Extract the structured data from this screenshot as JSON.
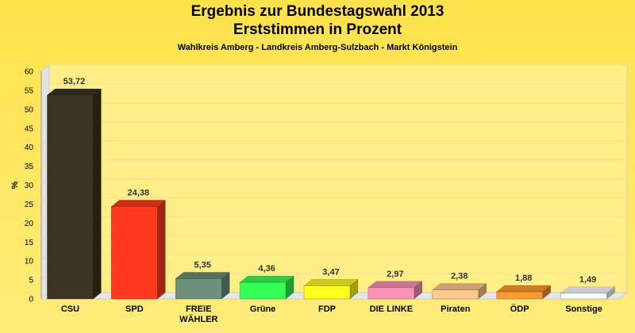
{
  "chart_data": {
    "type": "bar",
    "title": "Ergebnis zur Bundestagswahl 2013",
    "subtitle": "Erststimmen in Prozent",
    "caption": "Wahlkreis Amberg - Landkreis Amberg-Sulzbach - Markt Königstein",
    "ylabel": "%",
    "xlabel": "",
    "ylim": [
      0,
      60
    ],
    "yticks": [
      "0",
      "5",
      "10",
      "15",
      "20",
      "25",
      "30",
      "35",
      "40",
      "45",
      "50",
      "55",
      "60"
    ],
    "grid": true,
    "style": "3d",
    "categories": [
      [
        "CSU"
      ],
      [
        "SPD"
      ],
      [
        "FREIE",
        "WÄHLER"
      ],
      [
        "Grüne"
      ],
      [
        "FDP"
      ],
      [
        "DIE LINKE"
      ],
      [
        "Piraten"
      ],
      [
        "ÖDP"
      ],
      [
        "Sonstige"
      ]
    ],
    "values": [
      53.72,
      24.38,
      5.35,
      4.36,
      3.47,
      2.97,
      2.38,
      1.88,
      1.49
    ],
    "value_labels": [
      "53,72",
      "24,38",
      "5,35",
      "4,36",
      "3,47",
      "2,97",
      "2,38",
      "1,88",
      "1,49"
    ],
    "colors": [
      "#3d3522",
      "#ff3a1e",
      "#6e907a",
      "#33ff55",
      "#ffff1e",
      "#ff92b6",
      "#ffc98e",
      "#ff9a30",
      "#ffffff"
    ]
  }
}
